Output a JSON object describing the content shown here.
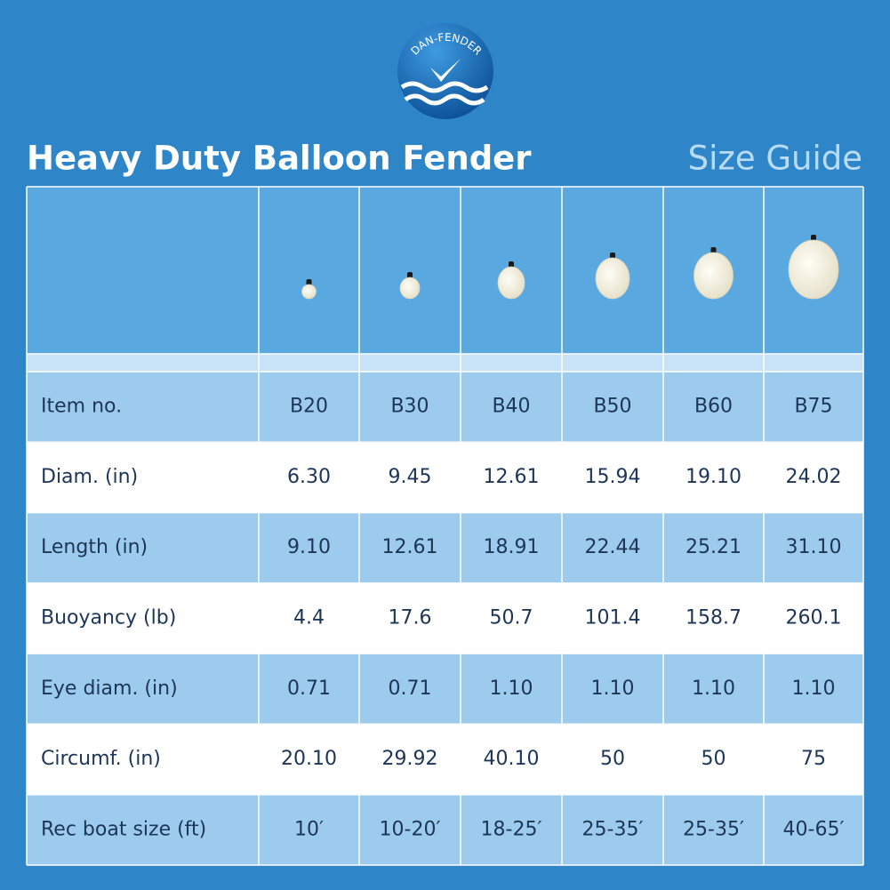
{
  "header": {
    "logo": "DAN-FENDER",
    "title": "Heavy Duty Balloon Fender",
    "subtitle": "Size Guide"
  },
  "table": {
    "rows": [
      [
        "Item no.",
        "B20",
        "B30",
        "B40",
        "B50",
        "B60",
        "B75"
      ],
      [
        "Diam. (in)",
        "6.30",
        "9.45",
        "12.61",
        "15.94",
        "19.10",
        "24.02"
      ],
      [
        "Length (in)",
        "9.10",
        "12.61",
        "18.91",
        "22.44",
        "25.21",
        "31.10"
      ],
      [
        "Buoyancy (lb)",
        "4.4",
        "17.6",
        "50.7",
        "101.4",
        "158.7",
        "260.1"
      ],
      [
        "Eye diam. (in)",
        "0.71",
        "0.71",
        "1.10",
        "1.10",
        "1.10",
        "1.10"
      ],
      [
        "Circumf. (in)",
        "20.10",
        "29.92",
        "40.10",
        "50",
        "50",
        "75"
      ],
      [
        "Rec boat size (ft)",
        "10′",
        "10-20′",
        "18-25′",
        "25-35′",
        "25-35′",
        "40-65′"
      ]
    ]
  }
}
